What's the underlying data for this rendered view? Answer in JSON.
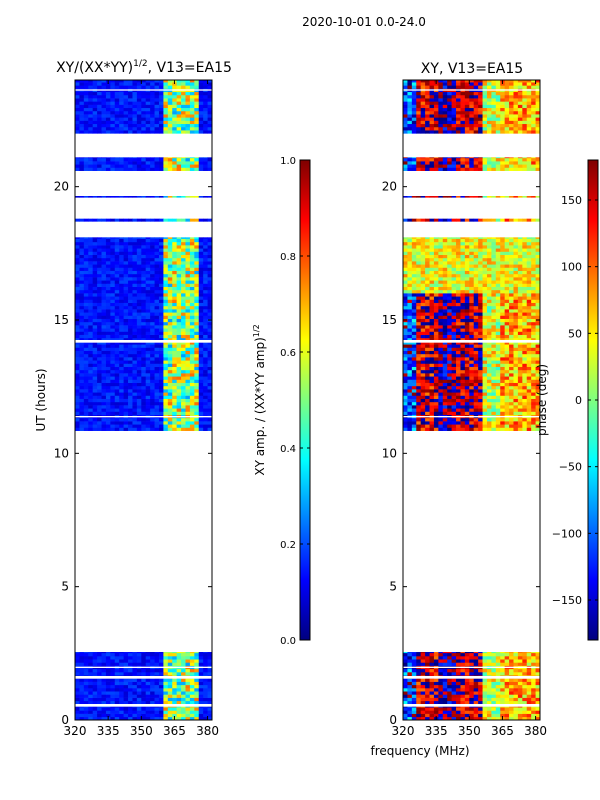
{
  "suptitle": "2020-10-01 0.0-24.0",
  "xlabel_shared": "frequency (MHz)",
  "colors": {
    "jet": [
      "#00007f",
      "#0000ff",
      "#007fff",
      "#00ffff",
      "#7fff7f",
      "#ffff00",
      "#ff7f00",
      "#ff0000",
      "#7f0000"
    ],
    "background": "#ffffff",
    "frame": "#000000"
  },
  "chart_data": [
    {
      "type": "heatmap",
      "title": "XY/(XX*YY)^{1/2}, V13=EA15",
      "title_main": "XY/(XX*YY)",
      "title_exp": "1/2",
      "title_suffix": ", V13=EA15",
      "xlabel": "",
      "ylabel": "UT (hours)",
      "xlim": [
        320,
        382
      ],
      "ylim": [
        0,
        24
      ],
      "xticks": [
        320,
        335,
        350,
        365,
        380
      ],
      "yticks": [
        0,
        5,
        10,
        15,
        20
      ],
      "colorbar": {
        "label_main": "XY amp. / (XX*YY amp)",
        "label_exp": "1/2",
        "range": [
          0.0,
          1.0
        ],
        "ticks": [
          "0.0",
          "0.2",
          "0.4",
          "0.6",
          "0.8",
          "1.0"
        ],
        "tick_values": [
          0.0,
          0.2,
          0.4,
          0.6,
          0.8,
          1.0
        ]
      },
      "data_bands_hours": [
        [
          0.0,
          2.55
        ],
        [
          10.85,
          18.1
        ],
        [
          18.7,
          18.8
        ],
        [
          19.6,
          19.65
        ],
        [
          20.6,
          21.1
        ],
        [
          22.0,
          24.0
        ]
      ],
      "flagged_gaps_hours": [
        [
          0.5,
          0.6
        ],
        [
          1.55,
          1.65
        ],
        [
          1.95,
          2.0
        ],
        [
          14.15,
          14.25
        ],
        [
          11.35,
          11.4
        ],
        [
          23.6,
          23.65
        ]
      ],
      "typical_level": 0.08,
      "rfi_channels_mhz": [
        360,
        376
      ],
      "rfi_level": 0.55
    },
    {
      "type": "heatmap",
      "title": "XY, V13=EA15",
      "xlabel": "",
      "ylabel": "",
      "xlim": [
        320,
        382
      ],
      "ylim": [
        0,
        24
      ],
      "xticks": [
        320,
        335,
        350,
        365,
        380
      ],
      "yticks": [
        0,
        5,
        10,
        15,
        20
      ],
      "colorbar": {
        "label": "phase (deg)",
        "range": [
          -180,
          180
        ],
        "ticks": [
          "−150",
          "−100",
          "−50",
          "0",
          "50",
          "100",
          "150"
        ],
        "tick_values": [
          -150,
          -100,
          -50,
          0,
          50,
          100,
          150
        ]
      },
      "data_bands_hours": [
        [
          0.0,
          2.55
        ],
        [
          10.85,
          18.1
        ],
        [
          18.7,
          18.8
        ],
        [
          19.6,
          19.65
        ],
        [
          20.6,
          21.1
        ],
        [
          22.0,
          24.0
        ]
      ],
      "flagged_gaps_hours": [
        [
          0.5,
          0.6
        ],
        [
          1.55,
          1.65
        ],
        [
          1.95,
          2.0
        ],
        [
          14.15,
          14.25
        ],
        [
          11.35,
          11.4
        ],
        [
          23.6,
          23.65
        ]
      ],
      "phase_stripes_mhz": [
        [
          326,
          337,
          150
        ],
        [
          337,
          345,
          -170
        ],
        [
          345,
          356,
          160
        ],
        [
          356,
          364,
          30
        ],
        [
          364,
          382,
          70
        ]
      ]
    }
  ]
}
